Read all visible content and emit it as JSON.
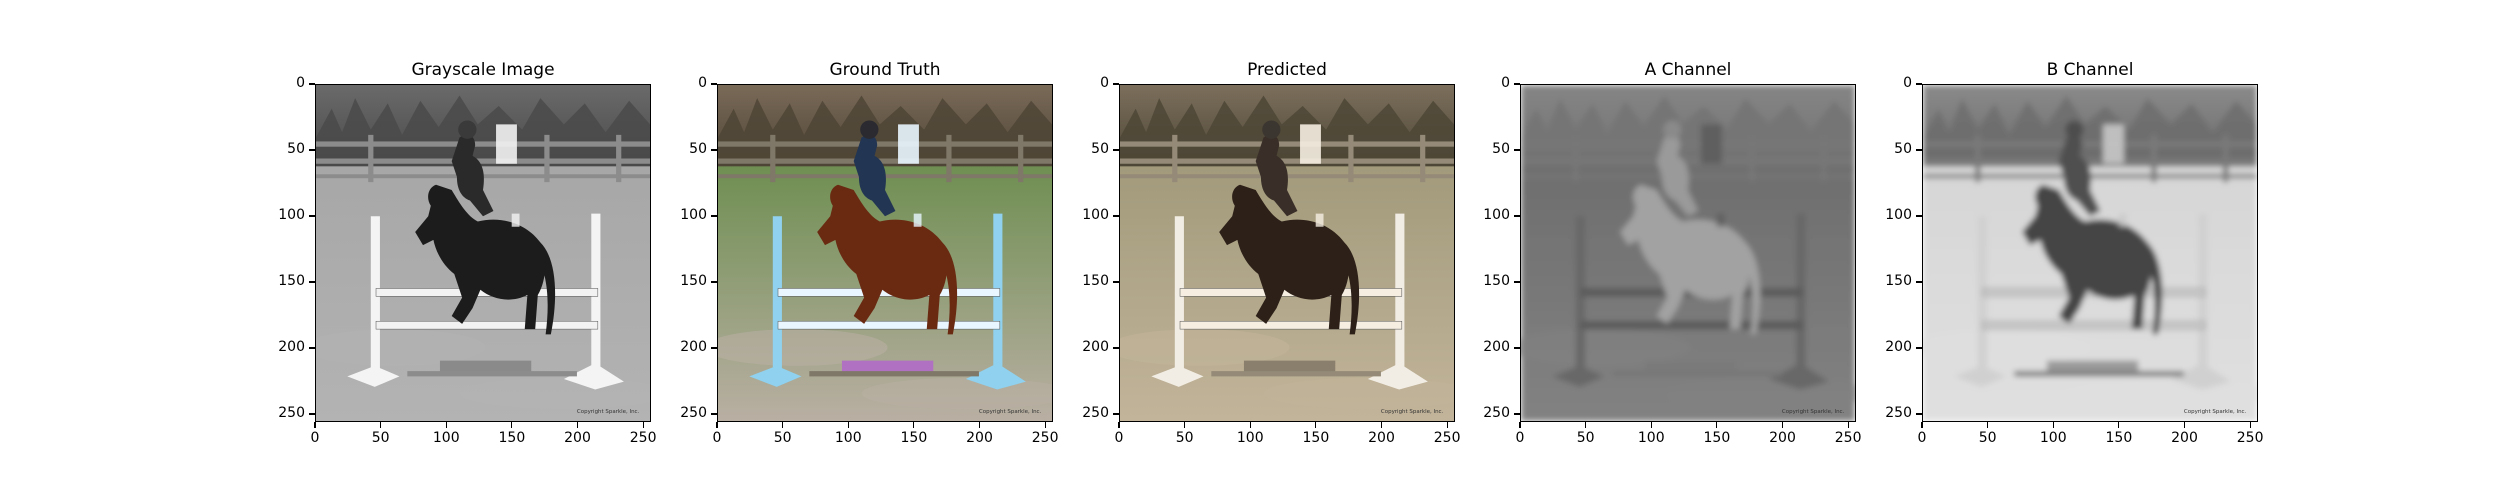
{
  "panels": [
    {
      "title": "Grayscale Image",
      "mode": "gray",
      "icon": "horse-jump-grayscale"
    },
    {
      "title": "Ground Truth",
      "mode": "color",
      "icon": "horse-jump-color"
    },
    {
      "title": "Predicted",
      "mode": "predicted",
      "icon": "horse-jump-predicted"
    },
    {
      "title": "A Channel",
      "mode": "a",
      "icon": "horse-jump-a-channel"
    },
    {
      "title": "B Channel",
      "mode": "b",
      "icon": "horse-jump-b-channel"
    }
  ],
  "axes": {
    "x_ticks": [
      "0",
      "50",
      "100",
      "150",
      "200",
      "250"
    ],
    "y_ticks": [
      "0",
      "50",
      "100",
      "150",
      "200",
      "250"
    ],
    "x_values": [
      0,
      50,
      100,
      150,
      200,
      250
    ],
    "y_values": [
      0,
      50,
      100,
      150,
      200,
      250
    ],
    "extent": 256
  },
  "watermark": "Copyright Sparkle, Inc."
}
